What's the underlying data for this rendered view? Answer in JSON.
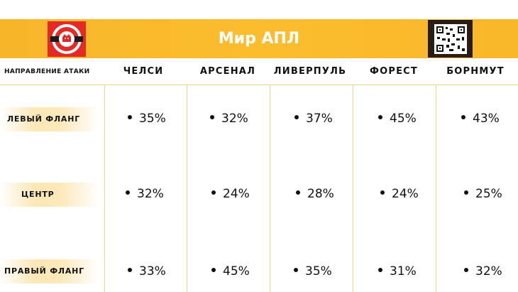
{
  "header": {
    "title": "Мир АПЛ",
    "logo_icon": "lion-club-logo-icon",
    "qr_icon": "qr-code-icon"
  },
  "colors": {
    "accent": "#fbbd2e",
    "logo_red": "#e52a26",
    "grid": "#f3d188"
  },
  "chart_data": {
    "type": "table",
    "row_header": "НАПРАВЛЕНИЕ АТАКИ",
    "columns": [
      "ЧЕЛСИ",
      "АРСЕНАЛ",
      "ЛИВЕРПУЛЬ",
      "ФОРЕСТ",
      "БОРНМУТ"
    ],
    "rows": [
      {
        "label": "ЛЕВЫЙ ФЛАНГ",
        "values": [
          "35%",
          "32%",
          "37%",
          "45%",
          "43%"
        ]
      },
      {
        "label": "ЦЕНТР",
        "values": [
          "32%",
          "24%",
          "28%",
          "24%",
          "25%"
        ]
      },
      {
        "label": "ПРАВЫЙ ФЛАНГ",
        "values": [
          "33%",
          "45%",
          "35%",
          "31%",
          "32%"
        ]
      }
    ]
  }
}
